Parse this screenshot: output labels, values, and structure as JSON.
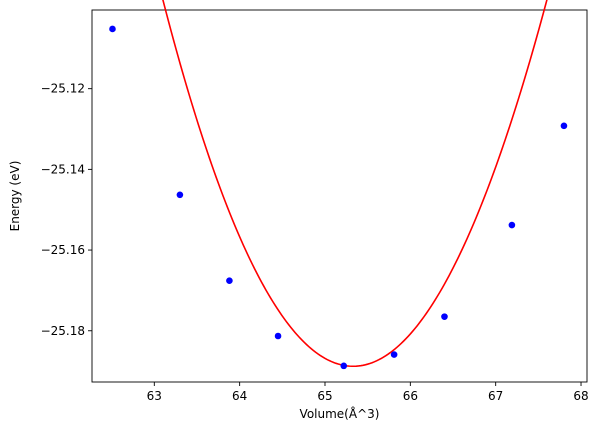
{
  "chart_data": {
    "type": "scatter",
    "title": "",
    "xlabel": "Volume(Å^3)",
    "ylabel": "Energy (eV)",
    "xlim": [
      62.27,
      68.07
    ],
    "ylim": [
      -25.1927,
      -25.1005
    ],
    "grid": false,
    "legend": "none",
    "x_ticks": [
      63,
      64,
      65,
      66,
      67,
      68
    ],
    "x_tick_labels": [
      "63",
      "64",
      "65",
      "66",
      "67",
      "68"
    ],
    "y_ticks": [
      -25.12,
      -25.14,
      -25.16,
      -25.18
    ],
    "y_tick_labels": [
      "−25.12",
      "−25.14",
      "−25.16",
      "−25.18"
    ],
    "series": [
      {
        "kind": "points",
        "color": "#0000ff",
        "x": [
          62.51,
          63.3,
          63.88,
          64.45,
          65.22,
          65.81,
          66.4,
          67.19,
          67.8
        ],
        "y": [
          -25.1052,
          -25.1463,
          -25.1676,
          -25.1813,
          -25.1887,
          -25.1859,
          -25.1765,
          -25.1538,
          -25.1292
        ]
      },
      {
        "kind": "fit",
        "color": "#ff0000",
        "fit": {
          "v0": 65.33,
          "e0": -25.1888,
          "a": 0.01795,
          "b": -0.000145
        },
        "x_range": [
          62.51,
          67.8
        ]
      }
    ]
  }
}
